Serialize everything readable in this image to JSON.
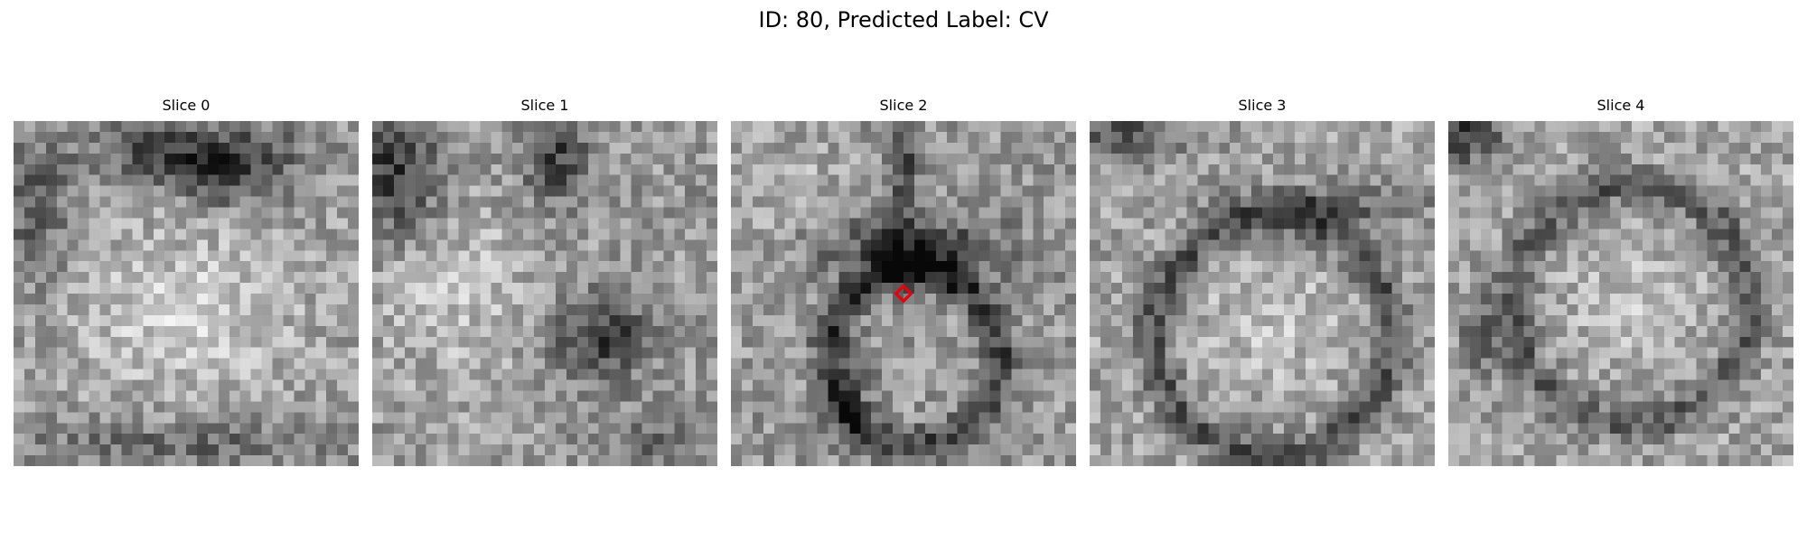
{
  "figure": {
    "title": "ID: 80, Predicted Label: CV"
  },
  "slices": [
    {
      "title": "Slice 0",
      "marker": false
    },
    {
      "title": "Slice 1",
      "marker": false
    },
    {
      "title": "Slice 2",
      "marker": true
    },
    {
      "title": "Slice 3",
      "marker": false
    },
    {
      "title": "Slice 4",
      "marker": false
    }
  ],
  "style": {
    "marker_color": "#e8000b",
    "colormap": "gray"
  },
  "icons": {
    "marker": "diamond-marker-icon"
  }
}
